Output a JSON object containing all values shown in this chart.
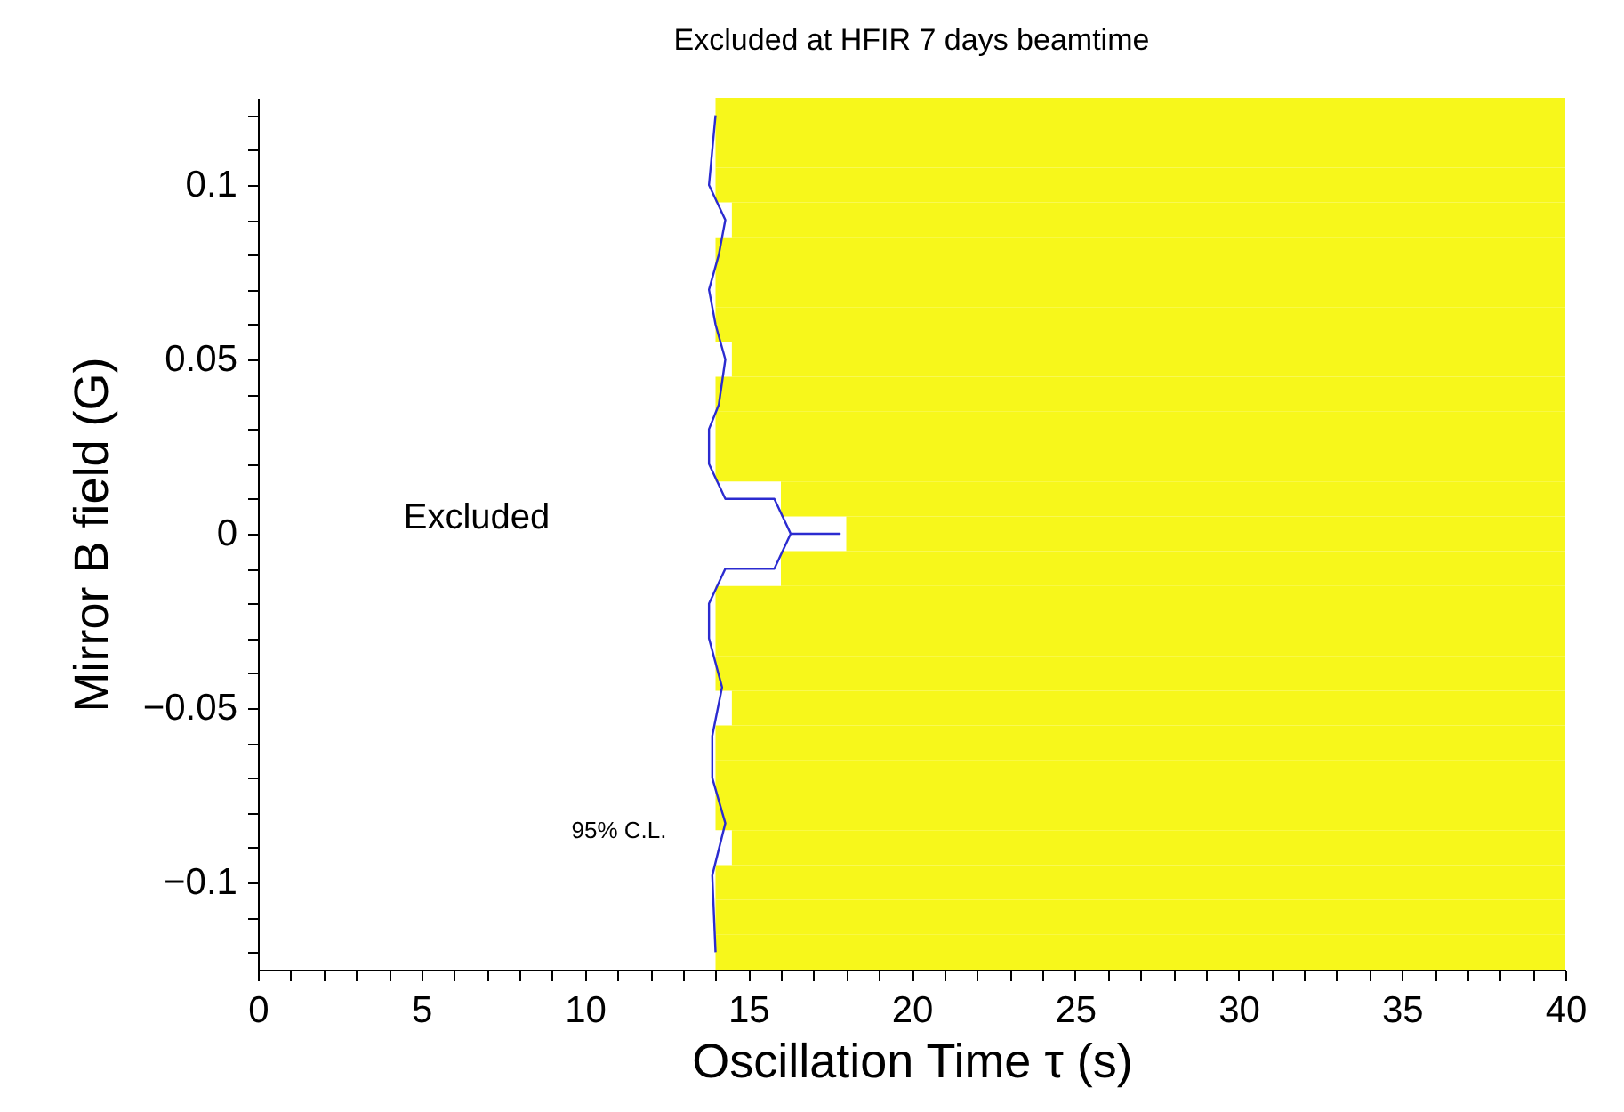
{
  "chart_data": {
    "type": "bar",
    "orientation": "horizontal",
    "title": "Excluded at HFIR 7 days beamtime",
    "xlabel": "Oscillation Time τ (s)",
    "ylabel": "Mirror B field (G)",
    "xlim": [
      0,
      40
    ],
    "ylim": [
      -0.125,
      0.125
    ],
    "xticks": [
      0,
      {
        "value": 1,
        "label": null
      },
      {
        "value": 2,
        "label": null
      },
      {
        "value": 3,
        "label": null
      },
      {
        "value": 4,
        "label": null
      },
      5,
      {
        "value": 6,
        "label": null
      },
      {
        "value": 7,
        "label": null
      },
      {
        "value": 8,
        "label": null
      },
      {
        "value": 9,
        "label": null
      },
      10,
      {
        "value": 11,
        "label": null
      },
      {
        "value": 12,
        "label": null
      },
      {
        "value": 13,
        "label": null
      },
      {
        "value": 14,
        "label": null
      },
      15,
      {
        "value": 16,
        "label": null
      },
      {
        "value": 17,
        "label": null
      },
      {
        "value": 18,
        "label": null
      },
      {
        "value": 19,
        "label": null
      },
      20,
      {
        "value": 21,
        "label": null
      },
      {
        "value": 22,
        "label": null
      },
      {
        "value": 23,
        "label": null
      },
      {
        "value": 24,
        "label": null
      },
      25,
      {
        "value": 26,
        "label": null
      },
      {
        "value": 27,
        "label": null
      },
      {
        "value": 28,
        "label": null
      },
      {
        "value": 29,
        "label": null
      },
      30,
      {
        "value": 31,
        "label": null
      },
      {
        "value": 32,
        "label": null
      },
      {
        "value": 33,
        "label": null
      },
      {
        "value": 34,
        "label": null
      },
      35,
      {
        "value": 36,
        "label": null
      },
      {
        "value": 37,
        "label": null
      },
      {
        "value": 38,
        "label": null
      },
      {
        "value": 39,
        "label": null
      },
      40
    ],
    "yticks": [
      {
        "value": -0.12,
        "label": null
      },
      {
        "value": -0.11,
        "label": null
      },
      {
        "value": -0.1,
        "label": "−0.1"
      },
      {
        "value": -0.09,
        "label": null
      },
      {
        "value": -0.08,
        "label": null
      },
      {
        "value": -0.07,
        "label": null
      },
      {
        "value": -0.06,
        "label": null
      },
      {
        "value": -0.05,
        "label": "−0.05"
      },
      {
        "value": -0.04,
        "label": null
      },
      {
        "value": -0.03,
        "label": null
      },
      {
        "value": -0.02,
        "label": null
      },
      {
        "value": -0.01,
        "label": null
      },
      0,
      {
        "value": 0.01,
        "label": null
      },
      {
        "value": 0.02,
        "label": null
      },
      {
        "value": 0.03,
        "label": null
      },
      {
        "value": 0.04,
        "label": null
      },
      0.05,
      {
        "value": 0.06,
        "label": null
      },
      {
        "value": 0.07,
        "label": null
      },
      {
        "value": 0.08,
        "label": null
      },
      {
        "value": 0.09,
        "label": null
      },
      0.1,
      {
        "value": 0.11,
        "label": null
      },
      {
        "value": 0.12,
        "label": null
      }
    ],
    "grid": false,
    "series": [
      {
        "color": "#f7f71b",
        "x": [
          0.12,
          0.11,
          0.1,
          0.09,
          0.08,
          0.07,
          0.06,
          0.05,
          0.04,
          0.03,
          0.02,
          0.01,
          0,
          -0.01,
          -0.02,
          -0.03,
          -0.04,
          -0.05,
          -0.06,
          -0.07,
          -0.08,
          -0.09,
          -0.1,
          -0.11,
          -0.12
        ],
        "base": [
          14,
          14,
          14,
          14.5,
          14,
          14,
          14,
          14.5,
          14,
          14,
          14,
          16,
          18,
          16,
          14,
          14,
          14,
          14.5,
          14,
          14,
          14,
          14.5,
          14,
          14,
          14
        ],
        "values": [
          26,
          26,
          26,
          25.5,
          26,
          26,
          26,
          25.5,
          26,
          26,
          26,
          24,
          22,
          24,
          26,
          26,
          26,
          25.5,
          26,
          26,
          26,
          25.5,
          26,
          26,
          26
        ]
      },
      {
        "type": "line",
        "color": "#2b2bd0",
        "marker": "none",
        "line_style": "solid",
        "x": [
          0.12,
          0.1,
          0.09,
          0.08,
          0.07,
          0.06,
          0.05,
          0.037,
          0.03,
          0.02,
          0.01,
          0.01,
          0,
          0,
          0,
          -0.01,
          -0.01,
          -0.02,
          -0.03,
          -0.044,
          -0.058,
          -0.07,
          -0.083,
          -0.098,
          -0.12
        ],
        "values": [
          14.0,
          13.8,
          14.3,
          14.1,
          13.8,
          14.0,
          14.3,
          14.1,
          13.8,
          13.8,
          14.3,
          15.8,
          16.3,
          17.8,
          16.3,
          15.8,
          14.3,
          13.8,
          13.8,
          14.2,
          13.9,
          13.9,
          14.3,
          13.9,
          14.0
        ]
      }
    ],
    "annotations": [
      "Excluded",
      "95% C.L."
    ]
  }
}
